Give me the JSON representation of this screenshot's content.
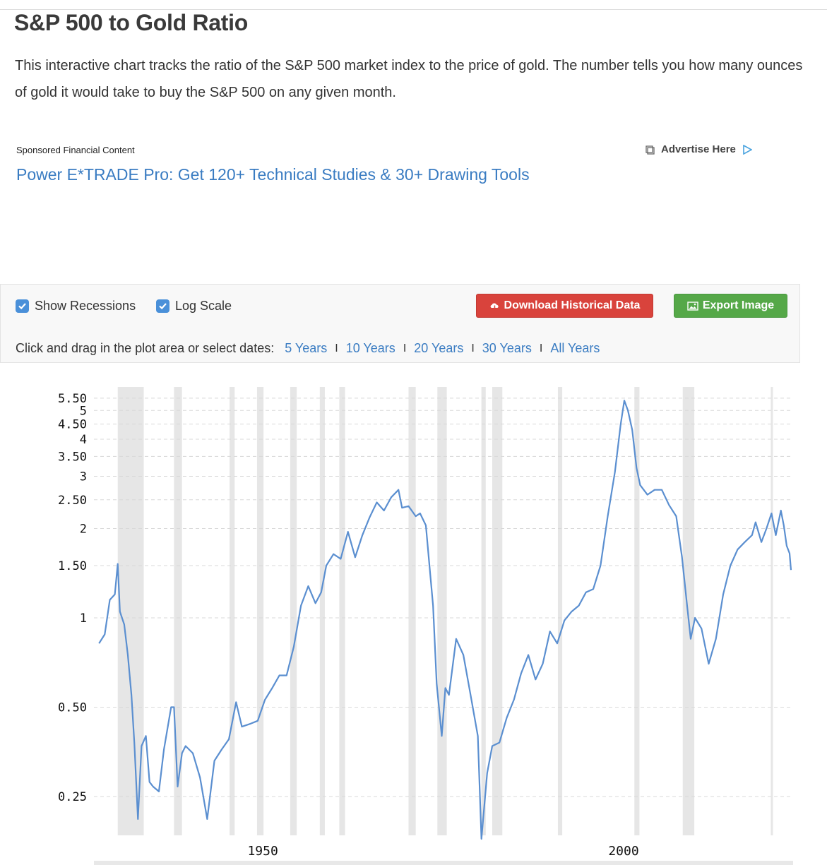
{
  "page": {
    "title": "S&P 500 to Gold Ratio",
    "intro": "This interactive chart tracks the ratio of the S&P 500 market index to the price of gold. The number tells you how many ounces of gold it would take to buy the S&P 500 on any given month."
  },
  "ad": {
    "sponsored_label": "Sponsored Financial Content",
    "advertise_label": "Advertise Here",
    "link_text": "Power E*TRADE Pro: Get 120+ Technical Studies & 30+ Drawing Tools"
  },
  "toolbar": {
    "show_recessions_label": "Show Recessions",
    "log_scale_label": "Log Scale",
    "download_label": "Download Historical Data",
    "export_label": "Export Image",
    "range_prompt": "Click and drag in the plot area or select dates:",
    "ranges": [
      "5 Years",
      "10 Years",
      "20 Years",
      "30 Years",
      "All Years"
    ]
  },
  "colors": {
    "line": "#5b8fd0",
    "recession": "#e6e6e6",
    "link": "#3a7cc2",
    "download_button": "#d9433c",
    "export_button": "#55a848",
    "checkbox": "#4a90d9"
  },
  "chart_data": {
    "type": "line",
    "title": "",
    "xlabel": "",
    "ylabel": "",
    "log_scale": true,
    "xlim": [
      1926.3,
      2022.9
    ],
    "ylim": [
      0.185,
      6.0
    ],
    "y_ticks": [
      0.25,
      0.5,
      1,
      1.5,
      2,
      2.5,
      3,
      3.5,
      4,
      4.5,
      5,
      5.5
    ],
    "y_tick_labels": [
      "0.25",
      "0.50",
      "1",
      "1.50",
      "2",
      "2.50",
      "3",
      "3.50",
      "4",
      "4.50",
      "5",
      "5.50"
    ],
    "x_ticks": [
      1950,
      2000
    ],
    "x_tick_labels": [
      "1950",
      "2000"
    ],
    "grid": true,
    "recessions": [
      [
        1929.6,
        1933.2
      ],
      [
        1937.4,
        1938.5
      ],
      [
        1945.1,
        1945.8
      ],
      [
        1948.9,
        1949.8
      ],
      [
        1953.5,
        1954.4
      ],
      [
        1957.6,
        1958.3
      ],
      [
        1960.3,
        1961.1
      ],
      [
        1969.9,
        1970.9
      ],
      [
        1973.9,
        1975.2
      ],
      [
        1980.0,
        1980.6
      ],
      [
        1981.5,
        1982.9
      ],
      [
        1990.6,
        1991.2
      ],
      [
        2001.2,
        2001.9
      ],
      [
        2007.9,
        2009.5
      ],
      [
        2020.1,
        2020.4
      ]
    ],
    "series": [
      {
        "points": [
          [
            1927.0,
            0.82
          ],
          [
            1927.8,
            0.88
          ],
          [
            1928.5,
            1.15
          ],
          [
            1929.2,
            1.2
          ],
          [
            1929.6,
            1.52
          ],
          [
            1929.9,
            1.05
          ],
          [
            1930.5,
            0.95
          ],
          [
            1931.0,
            0.75
          ],
          [
            1931.5,
            0.55
          ],
          [
            1931.9,
            0.38
          ],
          [
            1932.4,
            0.21
          ],
          [
            1932.9,
            0.37
          ],
          [
            1933.5,
            0.4
          ],
          [
            1934.0,
            0.28
          ],
          [
            1934.5,
            0.27
          ],
          [
            1935.3,
            0.26
          ],
          [
            1936.0,
            0.36
          ],
          [
            1937.0,
            0.5
          ],
          [
            1937.4,
            0.5
          ],
          [
            1937.9,
            0.27
          ],
          [
            1938.5,
            0.35
          ],
          [
            1939.0,
            0.37
          ],
          [
            1940.0,
            0.35
          ],
          [
            1941.0,
            0.29
          ],
          [
            1942.0,
            0.21
          ],
          [
            1943.0,
            0.33
          ],
          [
            1944.0,
            0.36
          ],
          [
            1945.0,
            0.39
          ],
          [
            1946.0,
            0.52
          ],
          [
            1946.8,
            0.43
          ],
          [
            1948.0,
            0.44
          ],
          [
            1949.0,
            0.45
          ],
          [
            1950.0,
            0.53
          ],
          [
            1951.0,
            0.58
          ],
          [
            1952.0,
            0.64
          ],
          [
            1953.0,
            0.64
          ],
          [
            1954.0,
            0.8
          ],
          [
            1955.0,
            1.1
          ],
          [
            1956.0,
            1.28
          ],
          [
            1957.0,
            1.12
          ],
          [
            1957.8,
            1.22
          ],
          [
            1958.5,
            1.5
          ],
          [
            1959.5,
            1.64
          ],
          [
            1960.5,
            1.58
          ],
          [
            1961.5,
            1.95
          ],
          [
            1962.5,
            1.6
          ],
          [
            1963.5,
            1.9
          ],
          [
            1964.5,
            2.18
          ],
          [
            1965.5,
            2.45
          ],
          [
            1966.5,
            2.3
          ],
          [
            1967.5,
            2.55
          ],
          [
            1968.5,
            2.7
          ],
          [
            1969.0,
            2.35
          ],
          [
            1969.9,
            2.38
          ],
          [
            1970.9,
            2.2
          ],
          [
            1971.5,
            2.25
          ],
          [
            1972.3,
            2.05
          ],
          [
            1972.8,
            1.5
          ],
          [
            1973.3,
            1.1
          ],
          [
            1973.8,
            0.6
          ],
          [
            1974.5,
            0.4
          ],
          [
            1975.0,
            0.58
          ],
          [
            1975.5,
            0.55
          ],
          [
            1976.5,
            0.85
          ],
          [
            1977.5,
            0.75
          ],
          [
            1978.5,
            0.55
          ],
          [
            1979.5,
            0.4
          ],
          [
            1980.0,
            0.18
          ],
          [
            1980.8,
            0.3
          ],
          [
            1981.5,
            0.37
          ],
          [
            1982.5,
            0.38
          ],
          [
            1983.5,
            0.46
          ],
          [
            1984.5,
            0.53
          ],
          [
            1985.5,
            0.65
          ],
          [
            1986.5,
            0.75
          ],
          [
            1987.5,
            0.62
          ],
          [
            1988.5,
            0.7
          ],
          [
            1989.5,
            0.9
          ],
          [
            1990.5,
            0.82
          ],
          [
            1991.5,
            0.98
          ],
          [
            1992.5,
            1.05
          ],
          [
            1993.5,
            1.1
          ],
          [
            1994.5,
            1.22
          ],
          [
            1995.5,
            1.25
          ],
          [
            1996.5,
            1.5
          ],
          [
            1997.5,
            2.2
          ],
          [
            1998.5,
            3.1
          ],
          [
            1999.3,
            4.5
          ],
          [
            1999.8,
            5.4
          ],
          [
            2000.3,
            5.0
          ],
          [
            2000.9,
            4.3
          ],
          [
            2001.5,
            3.2
          ],
          [
            2002.0,
            2.8
          ],
          [
            2003.0,
            2.6
          ],
          [
            2004.0,
            2.7
          ],
          [
            2005.0,
            2.7
          ],
          [
            2006.0,
            2.4
          ],
          [
            2007.0,
            2.2
          ],
          [
            2007.8,
            1.6
          ],
          [
            2008.5,
            1.1
          ],
          [
            2009.0,
            0.85
          ],
          [
            2009.6,
            1.0
          ],
          [
            2010.5,
            0.92
          ],
          [
            2011.5,
            0.7
          ],
          [
            2012.5,
            0.85
          ],
          [
            2013.5,
            1.2
          ],
          [
            2014.5,
            1.5
          ],
          [
            2015.5,
            1.7
          ],
          [
            2016.5,
            1.8
          ],
          [
            2017.5,
            1.9
          ],
          [
            2018.0,
            2.1
          ],
          [
            2018.8,
            1.8
          ],
          [
            2019.5,
            2.0
          ],
          [
            2020.2,
            2.25
          ],
          [
            2020.8,
            1.9
          ],
          [
            2021.5,
            2.3
          ],
          [
            2021.9,
            2.05
          ],
          [
            2022.3,
            1.75
          ],
          [
            2022.7,
            1.65
          ],
          [
            2022.9,
            1.45
          ]
        ]
      }
    ]
  }
}
